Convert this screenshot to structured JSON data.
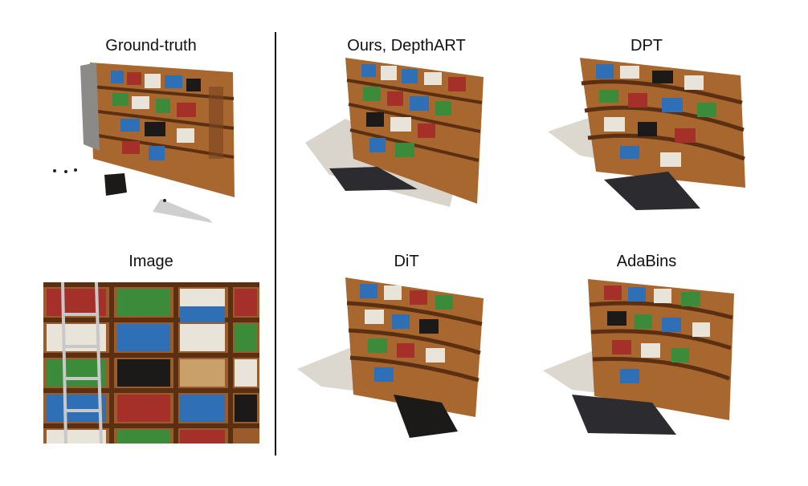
{
  "labels": {
    "ground_truth": "Ground-truth",
    "ours": "Ours, DepthART",
    "dpt": "DPT",
    "image": "Image",
    "dit": "DiT",
    "adabins": "AdaBins"
  },
  "colors": {
    "wood": "#b06a2c",
    "wood_dark": "#6b3a17",
    "book_blue": "#2f6fb5",
    "book_red": "#a5302a",
    "book_green": "#3c8b3a",
    "book_white": "#e8e4da",
    "book_black": "#1c1a18"
  }
}
